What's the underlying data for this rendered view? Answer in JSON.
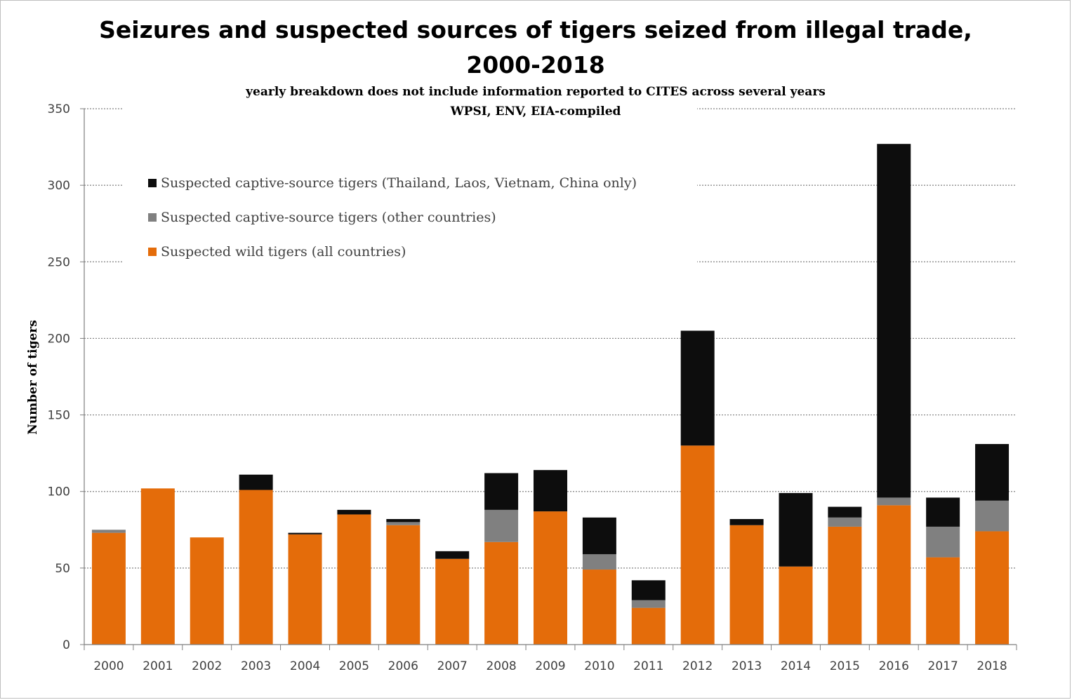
{
  "chart_data": {
    "type": "bar",
    "stacked": true,
    "title": "Seizures and suspected sources of tigers seized from illegal trade,",
    "title_line2": "2000-2018",
    "subtitle": "yearly breakdown does not include information reported to CITES across several years",
    "source": "WPSI, ENV, EIA-compiled",
    "xlabel": "",
    "ylabel": "Number of tigers",
    "ylim": [
      0,
      350
    ],
    "yticks": [
      0,
      50,
      100,
      150,
      200,
      250,
      300,
      350
    ],
    "grid": true,
    "legend_position": "top-left",
    "categories": [
      "2000",
      "2001",
      "2002",
      "2003",
      "2004",
      "2005",
      "2006",
      "2007",
      "2008",
      "2009",
      "2010",
      "2011",
      "2012",
      "2013",
      "2014",
      "2015",
      "2016",
      "2017",
      "2018"
    ],
    "series": [
      {
        "name": "Suspected wild tigers (all countries)",
        "color": "#e46c0a",
        "values": [
          73,
          102,
          70,
          101,
          72,
          85,
          78,
          56,
          67,
          87,
          49,
          24,
          130,
          78,
          51,
          77,
          91,
          57,
          74
        ]
      },
      {
        "name": "Suspected captive-source tigers (other countries)",
        "color": "#808080",
        "values": [
          2,
          0,
          0,
          0,
          0,
          0,
          2,
          0,
          21,
          0,
          10,
          5,
          0,
          0,
          0,
          6,
          5,
          20,
          20
        ]
      },
      {
        "name": "Suspected captive-source tigers (Thailand, Laos, Vietnam, China only)",
        "color": "#0d0d0d",
        "values": [
          0,
          0,
          0,
          10,
          1,
          3,
          2,
          5,
          24,
          27,
          24,
          13,
          75,
          4,
          48,
          7,
          231,
          19,
          37
        ]
      }
    ],
    "legend_order": [
      2,
      1,
      0
    ]
  }
}
